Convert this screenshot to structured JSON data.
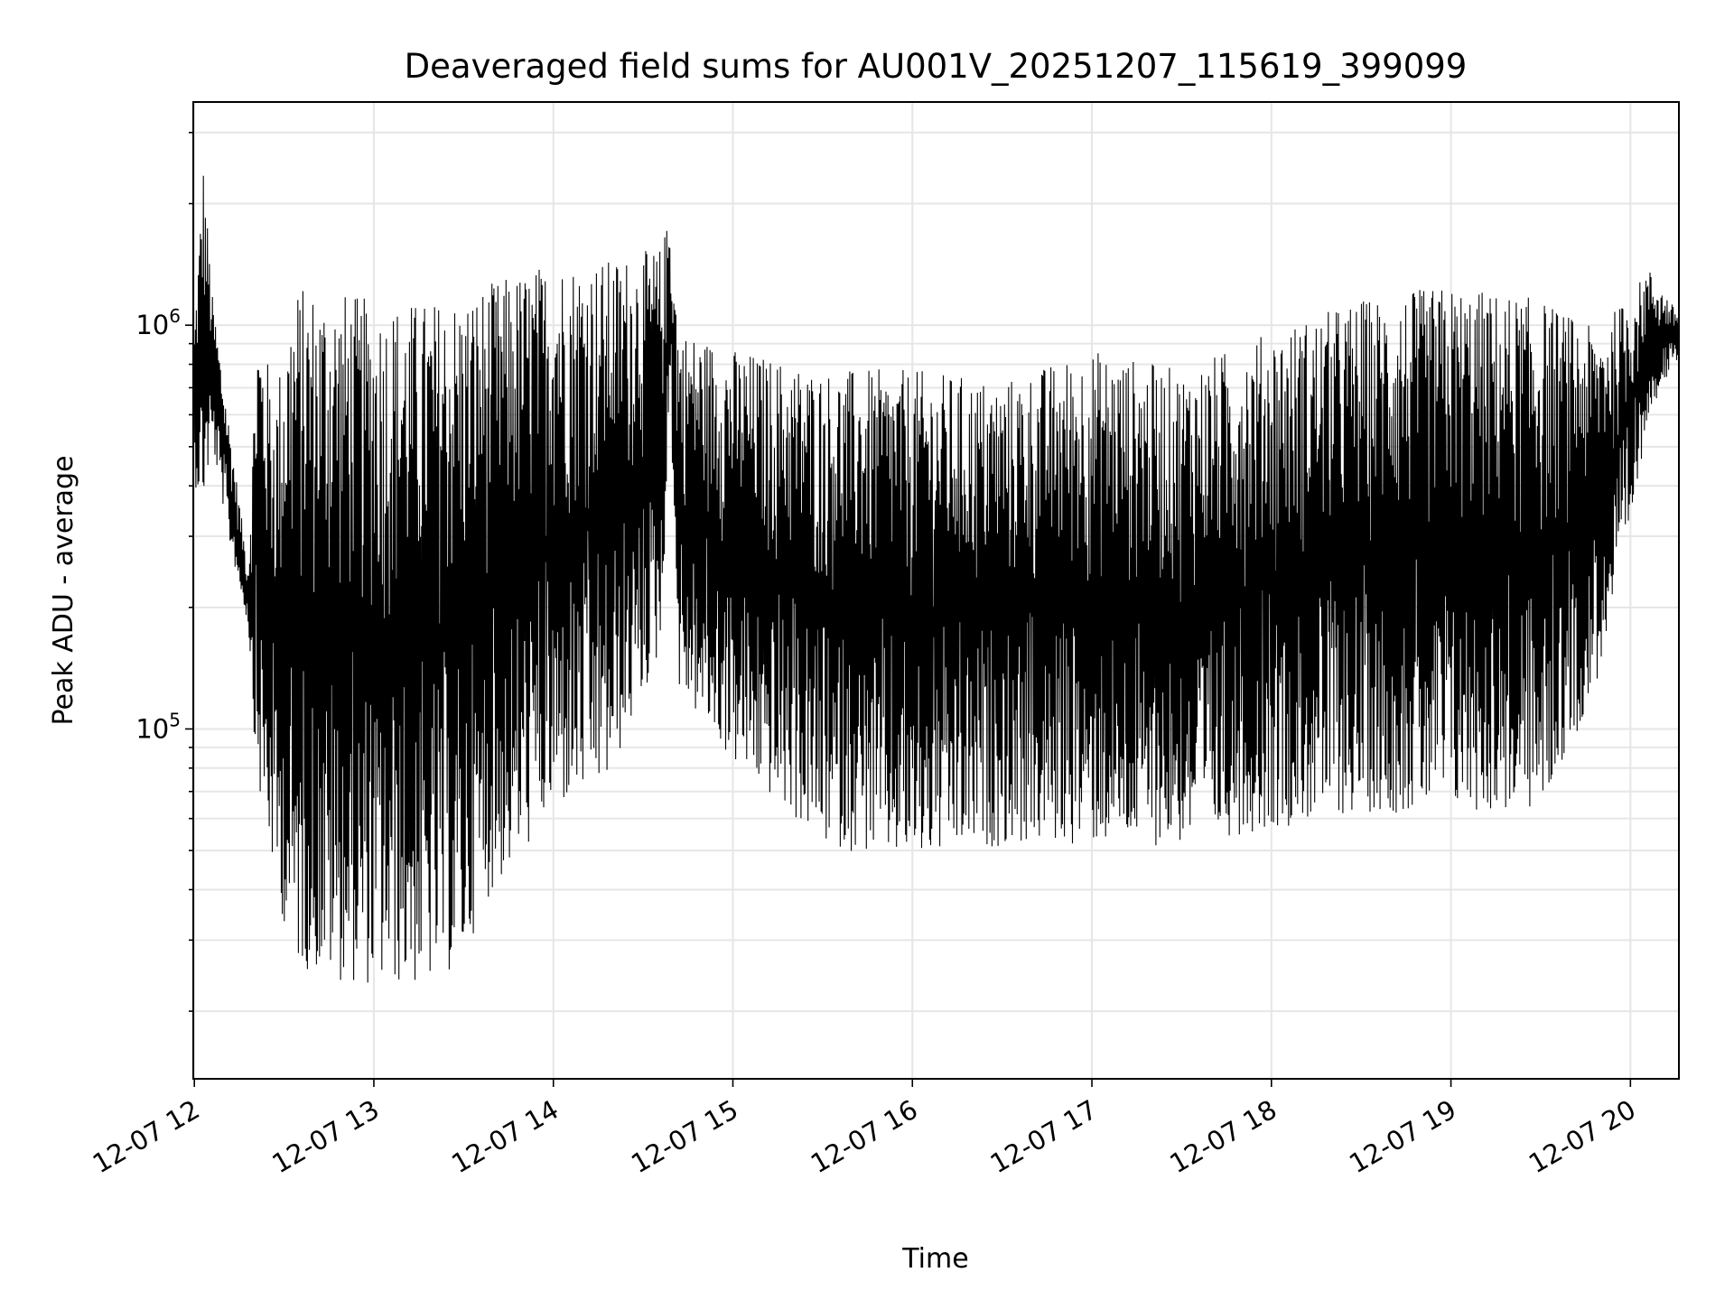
{
  "chart_data": {
    "type": "line",
    "title": "Deaveraged field sums for AU001V_20251207_115619_399099",
    "xlabel": "Time",
    "ylabel": "Peak ADU - average",
    "yscale": "log",
    "xlim_hours_after_12": [
      -0.006,
      8.27
    ],
    "ylim": [
      13600,
      3570000
    ],
    "grid": true,
    "x_ticks": [
      {
        "hour": 0,
        "label": "12-07 12"
      },
      {
        "hour": 1,
        "label": "12-07 13"
      },
      {
        "hour": 2,
        "label": "12-07 14"
      },
      {
        "hour": 3,
        "label": "12-07 15"
      },
      {
        "hour": 4,
        "label": "12-07 16"
      },
      {
        "hour": 5,
        "label": "12-07 17"
      },
      {
        "hour": 6,
        "label": "12-07 18"
      },
      {
        "hour": 7,
        "label": "12-07 19"
      },
      {
        "hour": 8,
        "label": "12-07 20"
      }
    ],
    "y_ticks": [
      {
        "value": 100000,
        "base": "10",
        "exp": "5"
      },
      {
        "value": 1000000,
        "base": "10",
        "exp": "6"
      }
    ],
    "series_color": "#000000",
    "grid_color": "#e6e6e6",
    "envelope_note_units": "hours after 12:00, low ADU, high ADU",
    "envelope": [
      [
        0.0,
        400000,
        1000000
      ],
      [
        0.05,
        350000,
        2600000
      ],
      [
        0.1,
        500000,
        1200000
      ],
      [
        0.2,
        280000,
        550000
      ],
      [
        0.3,
        180000,
        250000
      ],
      [
        0.35,
        70000,
        1100000
      ],
      [
        0.45,
        40000,
        700000
      ],
      [
        0.55,
        25000,
        1300000
      ],
      [
        0.75,
        23000,
        1300000
      ],
      [
        1.0,
        22000,
        1200000
      ],
      [
        1.3,
        22000,
        1200000
      ],
      [
        1.5,
        25000,
        1250000
      ],
      [
        1.6,
        35000,
        1300000
      ],
      [
        1.8,
        45000,
        1400000
      ],
      [
        2.0,
        60000,
        1500000
      ],
      [
        2.3,
        70000,
        1500000
      ],
      [
        2.6,
        150000,
        1600000
      ],
      [
        2.65,
        700000,
        1900000
      ],
      [
        2.7,
        120000,
        1000000
      ],
      [
        3.0,
        80000,
        900000
      ],
      [
        3.5,
        50000,
        800000
      ],
      [
        4.0,
        45000,
        800000
      ],
      [
        4.5,
        50000,
        750000
      ],
      [
        5.0,
        50000,
        900000
      ],
      [
        5.5,
        50000,
        800000
      ],
      [
        6.0,
        55000,
        1000000
      ],
      [
        6.5,
        60000,
        1200000
      ],
      [
        7.0,
        60000,
        1300000
      ],
      [
        7.5,
        60000,
        1200000
      ],
      [
        7.8,
        120000,
        1000000
      ],
      [
        8.0,
        300000,
        1200000
      ],
      [
        8.1,
        600000,
        1400000
      ],
      [
        8.25,
        800000,
        1100000
      ]
    ]
  }
}
